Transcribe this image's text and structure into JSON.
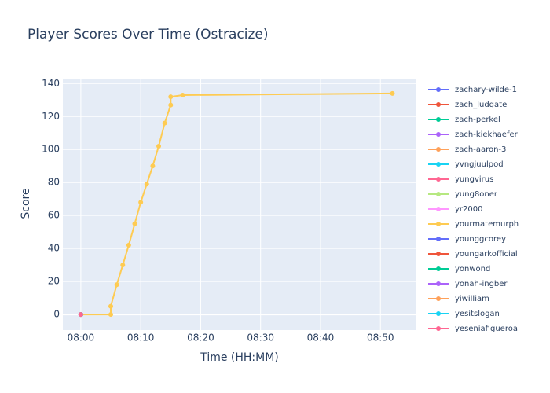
{
  "chart_data": {
    "type": "line",
    "title": "Player Scores Over Time (Ostracize)",
    "x_label": "Time (HH:MM)",
    "y_label": "Score",
    "xlim": [
      "07:57",
      "08:56"
    ],
    "ylim": [
      -9.5,
      143
    ],
    "xticks": [
      "08:00",
      "08:10",
      "08:20",
      "08:30",
      "08:40",
      "08:50"
    ],
    "yticks": [
      0,
      20,
      40,
      60,
      80,
      100,
      120,
      140
    ],
    "grid": true,
    "legend": "right",
    "series": [
      {
        "name": "zachary-wilde-1",
        "color": "#636efa",
        "x": [
          "08:00"
        ],
        "values": [
          0
        ]
      },
      {
        "name": "zach_ludgate",
        "color": "#EF553B",
        "x": [
          "08:00"
        ],
        "values": [
          0
        ]
      },
      {
        "name": "zach-perkel",
        "color": "#00cc96",
        "x": [
          "08:00"
        ],
        "values": [
          0
        ]
      },
      {
        "name": "zach-kiekhaefer",
        "color": "#ab63fa",
        "x": [
          "08:00"
        ],
        "values": [
          0
        ]
      },
      {
        "name": "zach-aaron-3",
        "color": "#FFA15A",
        "x": [
          "08:00"
        ],
        "values": [
          0
        ]
      },
      {
        "name": "yvngjuulpod",
        "color": "#19d3f3",
        "x": [
          "08:00"
        ],
        "values": [
          0
        ]
      },
      {
        "name": "yungvirus",
        "color": "#FF6692",
        "x": [
          "08:00"
        ],
        "values": [
          0
        ]
      },
      {
        "name": "yung8oner",
        "color": "#B6E880",
        "x": [
          "08:00"
        ],
        "values": [
          0
        ]
      },
      {
        "name": "yr2000",
        "color": "#FF97FF",
        "x": [
          "08:00"
        ],
        "values": [
          0
        ]
      },
      {
        "name": "yourmatemurph",
        "color": "#FECB52",
        "x": [
          "08:00",
          "08:05",
          "08:05",
          "08:06",
          "08:07",
          "08:08",
          "08:09",
          "08:10",
          "08:11",
          "08:12",
          "08:13",
          "08:14",
          "08:15",
          "08:15",
          "08:17",
          "08:52"
        ],
        "values": [
          0,
          0,
          5,
          18,
          30,
          42,
          55,
          68,
          79,
          90,
          102,
          116,
          127,
          132,
          133,
          134
        ]
      },
      {
        "name": "younggcorey",
        "color": "#636efa",
        "x": [
          "08:00"
        ],
        "values": [
          0
        ]
      },
      {
        "name": "youngarkofficial",
        "color": "#EF553B",
        "x": [
          "08:00"
        ],
        "values": [
          0
        ]
      },
      {
        "name": "yonwond",
        "color": "#00cc96",
        "x": [
          "08:00"
        ],
        "values": [
          0
        ]
      },
      {
        "name": "yonah-ingber",
        "color": "#ab63fa",
        "x": [
          "08:00"
        ],
        "values": [
          0
        ]
      },
      {
        "name": "yiwilliam",
        "color": "#FFA15A",
        "x": [
          "08:00"
        ],
        "values": [
          0
        ]
      },
      {
        "name": "yesitslogan",
        "color": "#19d3f3",
        "x": [
          "08:00"
        ],
        "values": [
          0
        ]
      },
      {
        "name": "yeseniafigueroa",
        "color": "#FF6692",
        "x": [
          "08:00"
        ],
        "values": [
          0
        ]
      }
    ]
  }
}
